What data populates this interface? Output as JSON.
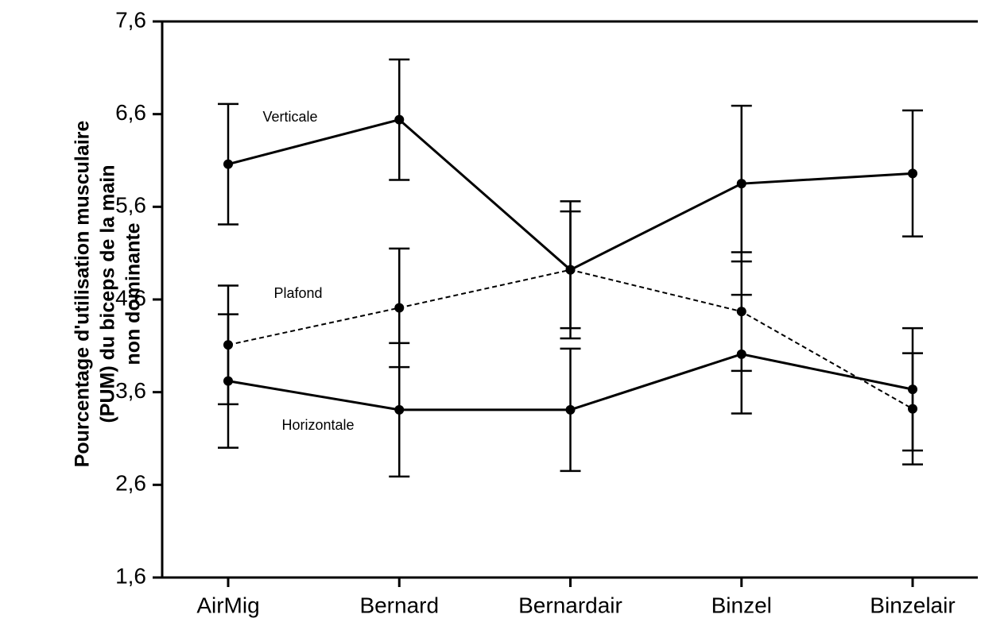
{
  "chart_data": {
    "type": "line",
    "y_label": [
      "Pourcentage d'utilisation musculaire",
      "(PUM) du biceps de la main",
      "non dominante"
    ],
    "categories": [
      "AirMig",
      "Bernard",
      "Bernardair",
      "Binzel",
      "Binzelair"
    ],
    "series": [
      {
        "name": "Verticale",
        "color": "#000000",
        "dash": "solid",
        "values": [
          6.06,
          6.54,
          4.92,
          5.85,
          5.96
        ],
        "errors": [
          0.65,
          0.65,
          0.63,
          0.84,
          0.68
        ]
      },
      {
        "name": "Plafond",
        "color": "#000000",
        "dash": "dashed",
        "values": [
          4.11,
          4.51,
          4.92,
          4.47,
          3.42
        ],
        "errors": [
          0.64,
          0.64,
          0.74,
          0.64,
          0.6
        ]
      },
      {
        "name": "Horizontale",
        "color": "#000000",
        "dash": "solid",
        "values": [
          3.72,
          3.41,
          3.41,
          4.01,
          3.63
        ],
        "errors": [
          0.72,
          0.72,
          0.66,
          0.64,
          0.66
        ]
      }
    ],
    "ylim": [
      1.6,
      7.6
    ],
    "yticks": [
      {
        "value": 1.6,
        "label": "1,6"
      },
      {
        "value": 2.6,
        "label": "2,6"
      },
      {
        "value": 3.6,
        "label": "3,6"
      },
      {
        "value": 4.6,
        "label": "4,6"
      },
      {
        "value": 5.6,
        "label": "5,6"
      },
      {
        "value": 6.6,
        "label": "6,6"
      },
      {
        "value": 7.6,
        "label": "7,6"
      }
    ]
  }
}
